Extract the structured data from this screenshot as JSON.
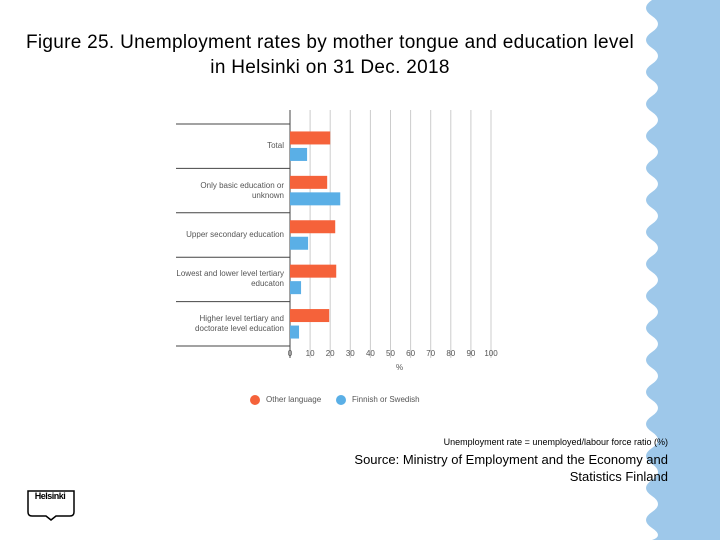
{
  "header": {
    "title": "Figure 25. Unemployment rates by mother tongue and education level in Helsinki on 31 Dec. 2018"
  },
  "chart_data": {
    "type": "bar",
    "horizontal": true,
    "categories": [
      "Total",
      "Only basic education or unknown",
      "Upper secondary education",
      "Lowest and lower level tertiary educaton",
      "Higher level tertiary and doctorate level education"
    ],
    "series": [
      {
        "name": "Other language",
        "color": "#f5623a",
        "values": [
          20,
          18.5,
          22.5,
          23,
          19.5
        ]
      },
      {
        "name": "Finnish or Swedish",
        "color": "#5aafe6",
        "values": [
          8.5,
          25,
          9,
          5.5,
          4.5
        ]
      }
    ],
    "xlim": [
      0,
      100
    ],
    "xticks": [
      0,
      10,
      20,
      30,
      40,
      50,
      60,
      70,
      80,
      90,
      100
    ],
    "x_label": "%",
    "grid": true
  },
  "footnote": "Unemployment rate = unemployed/labour force ratio (%)",
  "source": "Source: Ministry of Employment and the Economy and Statistics Finland",
  "logo": "Helsinki"
}
